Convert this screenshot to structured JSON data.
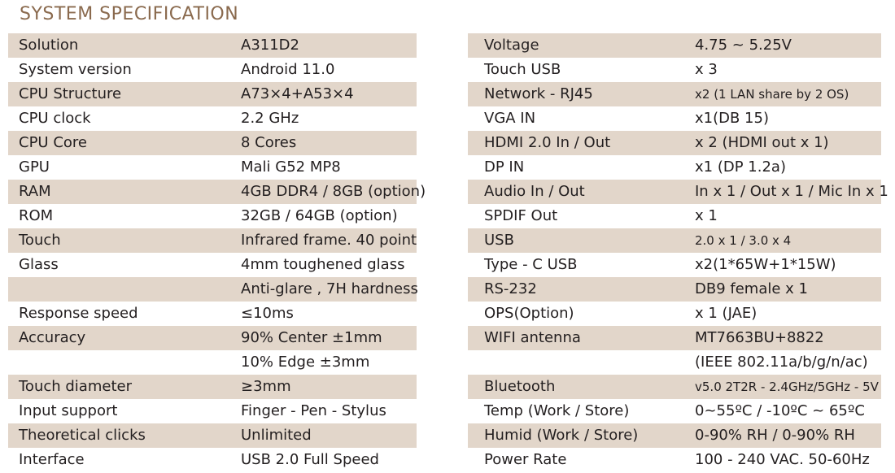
{
  "title": "SYSTEM SPECIFICATION",
  "colors": {
    "title": "#8a6a4e",
    "row_shade": "#e2d6ca",
    "text": "#231f20"
  },
  "left": [
    {
      "label": "Solution",
      "value": "A311D2"
    },
    {
      "label": "System version",
      "value": "Android 11.0"
    },
    {
      "label": "CPU Structure",
      "value": "A73×4+A53×4"
    },
    {
      "label": "CPU clock",
      "value": "2.2 GHz"
    },
    {
      "label": "CPU Core",
      "value": "8 Cores"
    },
    {
      "label": "GPU",
      "value": "Mali G52 MP8"
    },
    {
      "label": "RAM",
      "value": "4GB DDR4 / 8GB (option)"
    },
    {
      "label": "ROM",
      "value": "32GB / 64GB (option)"
    },
    {
      "label": "Touch",
      "value": "Infrared frame. 40 point"
    },
    {
      "label": "Glass",
      "value": "4mm toughened glass"
    },
    {
      "label": "",
      "value": "Anti-glare , 7H hardness"
    },
    {
      "label": "Response speed",
      "value": "≤10ms"
    },
    {
      "label": "Accuracy",
      "value": "90% Center ±1mm"
    },
    {
      "label": "",
      "value": "10% Edge  ±3mm"
    },
    {
      "label": "Touch diameter",
      "value": "≥3mm"
    },
    {
      "label": "Input support",
      "value": "Finger - Pen - Stylus"
    },
    {
      "label": "Theoretical clicks",
      "value": "Unlimited"
    },
    {
      "label": "Interface",
      "value": "USB 2.0 Full Speed"
    }
  ],
  "right": [
    {
      "label": "Voltage",
      "value": "4.75 ~ 5.25V"
    },
    {
      "label": "Touch USB",
      "value": "x 3"
    },
    {
      "label": "Network - RJ45",
      "value": "x2 (1 LAN share by 2 OS)"
    },
    {
      "label": "VGA IN",
      "value": "x1(DB 15)"
    },
    {
      "label": "HDMI 2.0 In / Out",
      "value": "x 2 (HDMI out x 1)"
    },
    {
      "label": "DP IN",
      "value": "x1 (DP 1.2a)"
    },
    {
      "label": "Audio In / Out",
      "value": "In x 1 / Out x 1 / Mic In x 1"
    },
    {
      "label": "SPDIF Out",
      "value": "x 1"
    },
    {
      "label": "USB",
      "value": "2.0 x 1 / 3.0 x 4"
    },
    {
      "label": "Type - C USB",
      "value": "x2(1*65W+1*15W)"
    },
    {
      "label": "RS-232",
      "value": "DB9 female x 1"
    },
    {
      "label": "OPS(Option)",
      "value": "x 1 (JAE)"
    },
    {
      "label": "WIFI antenna",
      "value": "MT7663BU+8822"
    },
    {
      "label": "",
      "value": "(IEEE 802.11a/b/g/n/ac)"
    },
    {
      "label": "Bluetooth",
      "value": "v5.0 2T2R - 2.4GHz/5GHz - 5V"
    },
    {
      "label": "Temp (Work / Store)",
      "value": "0~55ºC / -10ºC ~ 65ºC"
    },
    {
      "label": "Humid (Work / Store)",
      "value": "0-90% RH / 0-90% RH"
    },
    {
      "label": "Power Rate",
      "value": "100 - 240 VAC. 50-60Hz"
    }
  ]
}
